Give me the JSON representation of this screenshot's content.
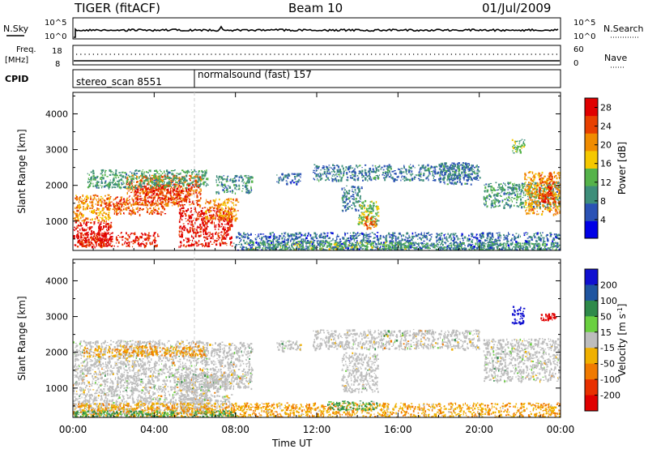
{
  "header": {
    "radar": "TIGER (fitACF)",
    "beam": "Beam 10",
    "date": "01/Jul/2009"
  },
  "strips": {
    "nsky_label": "N.Sky",
    "nsky_ticks": [
      "10^5",
      "10^0"
    ],
    "nsearch_label": "N.Search",
    "nsearch_ticks": [
      "10^5",
      "10^0"
    ],
    "freq_label_1": "Freq.",
    "freq_label_2": "[MHz]",
    "freq_ticks": [
      "18",
      "8"
    ],
    "nave_label": "Nave",
    "nave_ticks": [
      "60",
      "0"
    ],
    "cpid_label": "CPID",
    "cpid_segments": [
      {
        "name": "stereo_scan 8551",
        "start_hour": 0,
        "end_hour": 6
      },
      {
        "name": "normalsound (fast) 157",
        "start_hour": 6,
        "end_hour": 24
      }
    ]
  },
  "chart_data": [
    {
      "type": "heatmap",
      "panel": "power",
      "ylabel": "Slant Range [km]",
      "xlabel": "Time UT",
      "x_ticks": [
        "00:00",
        "04:00",
        "08:00",
        "12:00",
        "16:00",
        "20:00",
        "00:00"
      ],
      "xlim_hours": [
        0,
        24
      ],
      "y_ticks": [
        1000,
        2000,
        3000,
        4000
      ],
      "ylim": [
        180,
        4600
      ],
      "colorbar": {
        "label": "Power [dB]",
        "ticks": [
          4,
          8,
          12,
          16,
          20,
          24,
          28
        ],
        "range": [
          0,
          30
        ],
        "colors": [
          "#0000e6",
          "#2b52b5",
          "#3e8e7a",
          "#55b34a",
          "#f5c800",
          "#f08c00",
          "#e84000",
          "#e00000"
        ]
      },
      "patches": [
        {
          "t0": 0.0,
          "t1": 1.9,
          "r0": 300,
          "r1": 1000,
          "value": 28
        },
        {
          "t0": 0.3,
          "t1": 4.2,
          "r0": 300,
          "r1": 700,
          "value": 27
        },
        {
          "t0": 0.0,
          "t1": 1.8,
          "r0": 1000,
          "r1": 1750,
          "value": 20
        },
        {
          "t0": 1.5,
          "t1": 2.7,
          "r0": 1350,
          "r1": 1700,
          "value": 24
        },
        {
          "t0": 2.0,
          "t1": 4.5,
          "r0": 1200,
          "r1": 1550,
          "value": 24
        },
        {
          "t0": 2.6,
          "t1": 6.3,
          "r0": 1450,
          "r1": 2300,
          "value": 23
        },
        {
          "t0": 3.0,
          "t1": 5.7,
          "r0": 1550,
          "r1": 2050,
          "value": 26
        },
        {
          "t0": 0.7,
          "t1": 6.6,
          "r0": 1950,
          "r1": 2450,
          "value": 11
        },
        {
          "t0": 5.2,
          "t1": 7.8,
          "r0": 300,
          "r1": 1400,
          "value": 28
        },
        {
          "t0": 6.5,
          "t1": 8.1,
          "r0": 1050,
          "r1": 1650,
          "value": 20
        },
        {
          "t0": 7.0,
          "t1": 8.8,
          "r0": 1800,
          "r1": 2300,
          "value": 9
        },
        {
          "t0": 10.0,
          "t1": 11.2,
          "r0": 2050,
          "r1": 2350,
          "value": 7
        },
        {
          "t0": 11.8,
          "t1": 20.0,
          "r0": 2150,
          "r1": 2600,
          "value": 8
        },
        {
          "t0": 13.2,
          "t1": 14.2,
          "r0": 1300,
          "r1": 2000,
          "value": 8
        },
        {
          "t0": 14.0,
          "t1": 15.0,
          "r0": 900,
          "r1": 1600,
          "value": 14
        },
        {
          "t0": 14.3,
          "t1": 14.9,
          "r0": 800,
          "r1": 1150,
          "value": 23
        },
        {
          "t0": 18.0,
          "t1": 19.6,
          "r0": 2050,
          "r1": 2650,
          "value": 8
        },
        {
          "t0": 20.2,
          "t1": 24.0,
          "r0": 1400,
          "r1": 2100,
          "value": 10
        },
        {
          "t0": 22.2,
          "t1": 24.0,
          "r0": 1200,
          "r1": 2400,
          "value": 20
        },
        {
          "t0": 22.9,
          "t1": 23.7,
          "r0": 1500,
          "r1": 2300,
          "value": 25
        },
        {
          "t0": 21.6,
          "t1": 22.2,
          "r0": 2900,
          "r1": 3300,
          "value": 12
        },
        {
          "t0": 7.9,
          "t1": 24.0,
          "r0": 200,
          "r1": 700,
          "value": 7
        },
        {
          "t0": 8.5,
          "t1": 16.5,
          "r0": 200,
          "r1": 450,
          "value": 12
        },
        {
          "t0": 15.5,
          "t1": 24.0,
          "r0": 200,
          "r1": 420,
          "value": 11
        }
      ]
    },
    {
      "type": "heatmap",
      "panel": "velocity",
      "ylabel": "Slant Range [km]",
      "xlabel": "Time UT",
      "x_ticks": [
        "00:00",
        "04:00",
        "08:00",
        "12:00",
        "16:00",
        "20:00",
        "00:00"
      ],
      "xlim_hours": [
        0,
        24
      ],
      "y_ticks": [
        1000,
        2000,
        3000,
        4000
      ],
      "ylim": [
        180,
        4600
      ],
      "colorbar": {
        "label": "Velocity [m s^-1]",
        "ticks": [
          200,
          100,
          50,
          15,
          -15,
          -50,
          -100,
          -200
        ],
        "colors": [
          "#1010d0",
          "#1f55a0",
          "#2f8a4a",
          "#6ad040",
          "#bdbdbd",
          "#f0b000",
          "#f07a00",
          "#e83000",
          "#e00000"
        ]
      },
      "patches": [
        {
          "t0": 0.0,
          "t1": 6.6,
          "r0": 300,
          "r1": 2350,
          "value": 0
        },
        {
          "t0": 5.2,
          "t1": 7.8,
          "r0": 300,
          "r1": 1400,
          "value": 0
        },
        {
          "t0": 6.5,
          "t1": 8.8,
          "r0": 1000,
          "r1": 2300,
          "value": 0
        },
        {
          "t0": 10.0,
          "t1": 11.2,
          "r0": 2050,
          "r1": 2350,
          "value": 0
        },
        {
          "t0": 11.8,
          "t1": 20.0,
          "r0": 2100,
          "r1": 2650,
          "value": 0
        },
        {
          "t0": 13.2,
          "t1": 15.0,
          "r0": 900,
          "r1": 2000,
          "value": 0
        },
        {
          "t0": 20.2,
          "t1": 24.0,
          "r0": 1200,
          "r1": 2400,
          "value": 0
        },
        {
          "t0": 0.0,
          "t1": 24.0,
          "r0": 200,
          "r1": 600,
          "value": -30
        },
        {
          "t0": 0.0,
          "t1": 8.0,
          "r0": 200,
          "r1": 380,
          "value": 35
        },
        {
          "t0": 12.5,
          "t1": 15.0,
          "r0": 400,
          "r1": 650,
          "value": 35
        },
        {
          "t0": 0.5,
          "t1": 6.5,
          "r0": 1900,
          "r1": 2200,
          "value": -30
        },
        {
          "t0": 21.6,
          "t1": 22.2,
          "r0": 2800,
          "r1": 3300,
          "value": 200
        },
        {
          "t0": 23.0,
          "t1": 23.8,
          "r0": 2900,
          "r1": 3100,
          "value": -200
        }
      ]
    }
  ]
}
